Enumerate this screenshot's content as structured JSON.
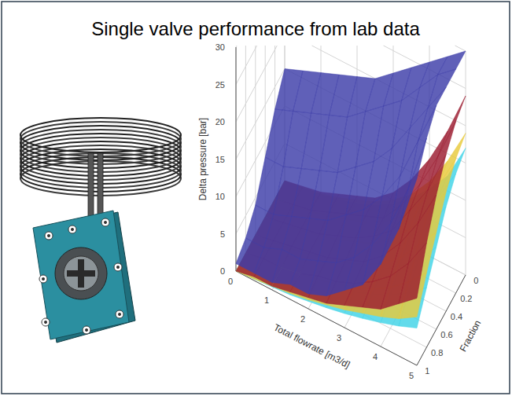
{
  "title": "Single valve performance from lab data",
  "chart_data": {
    "type": "surface",
    "xlabel": "Total flowrate [m3/d]",
    "ylabel": "Fraction",
    "zlabel": "Delta pressure [bar]",
    "x": [
      0,
      0.5,
      1,
      1.5,
      2,
      2.5,
      3,
      3.5,
      4,
      4.5,
      5
    ],
    "y": [
      0,
      0.2,
      0.4,
      0.6,
      0.8,
      1
    ],
    "xlim": [
      0,
      5
    ],
    "ylim": [
      0,
      1
    ],
    "zlim": [
      0,
      30
    ],
    "xticks": [
      0,
      1,
      2,
      3,
      4,
      5
    ],
    "yticks": [
      0,
      0.2,
      0.4,
      0.6,
      0.8,
      1
    ],
    "zticks": [
      0,
      5,
      10,
      15,
      20,
      25,
      30
    ],
    "grid": true,
    "series": [
      {
        "color": "#3d3da8",
        "values": [
          [
            15,
            16,
            17,
            18,
            19,
            20,
            22,
            24,
            26,
            28,
            30
          ],
          [
            12,
            13,
            14,
            15,
            16,
            18,
            20,
            22,
            25,
            28,
            30
          ],
          [
            8,
            8,
            9,
            10,
            11,
            13,
            15,
            18,
            22,
            26,
            30
          ],
          [
            4,
            4,
            5,
            6,
            7,
            9,
            11,
            14,
            18,
            24,
            30
          ],
          [
            2,
            2,
            3,
            3,
            4,
            5,
            7,
            10,
            14,
            20,
            28
          ],
          [
            1,
            1,
            1,
            2,
            2,
            3,
            5,
            7,
            11,
            17,
            25
          ]
        ]
      },
      {
        "color": "#9b1b30",
        "values": [
          [
            0,
            0.5,
            1,
            2,
            3,
            4,
            6,
            9,
            13,
            18,
            24
          ],
          [
            0,
            0.5,
            1,
            2,
            3,
            4,
            5,
            8,
            12,
            17,
            23
          ],
          [
            0,
            0.5,
            1,
            1.5,
            2.5,
            3.5,
            5,
            7,
            11,
            15,
            21
          ],
          [
            0,
            0.5,
            1,
            1.5,
            2,
            3,
            4,
            6,
            9,
            13,
            18
          ],
          [
            0,
            0.5,
            0.5,
            1,
            2,
            2.5,
            3.5,
            5,
            7,
            10,
            14
          ],
          [
            0,
            0.5,
            0.5,
            1,
            1.5,
            2,
            3,
            4,
            5,
            7,
            9
          ]
        ]
      },
      {
        "color": "#e8c93a",
        "values": [
          [
            0,
            0.4,
            0.8,
            1.5,
            2.5,
            3.5,
            5,
            7,
            10,
            14,
            19
          ],
          [
            0,
            0.4,
            0.8,
            1.5,
            2.3,
            3.2,
            4.5,
            6.5,
            9.5,
            13,
            18
          ],
          [
            0,
            0.3,
            0.7,
            1.3,
            2,
            3,
            4,
            6,
            8.5,
            12,
            16
          ],
          [
            0,
            0.3,
            0.6,
            1.2,
            1.8,
            2.6,
            3.6,
            5,
            7,
            10,
            13
          ],
          [
            0,
            0.3,
            0.5,
            1,
            1.5,
            2.2,
            3,
            4,
            5.5,
            7.5,
            10
          ],
          [
            0,
            0.2,
            0.5,
            0.8,
            1.2,
            1.8,
            2.4,
            3.2,
            4,
            5,
            6.5
          ]
        ]
      },
      {
        "color": "#3fd3e6",
        "values": [
          [
            0,
            0.3,
            0.7,
            1.2,
            2,
            3,
            4.5,
            6.5,
            9,
            12,
            17
          ],
          [
            0,
            0.3,
            0.6,
            1.1,
            1.8,
            2.8,
            4,
            6,
            8.5,
            11.5,
            16
          ],
          [
            0,
            0.3,
            0.6,
            1,
            1.6,
            2.5,
            3.5,
            5,
            7.5,
            10,
            14
          ],
          [
            0,
            0.2,
            0.5,
            0.9,
            1.4,
            2.1,
            3,
            4.2,
            6,
            8,
            11
          ],
          [
            0,
            0.2,
            0.4,
            0.8,
            1.2,
            1.7,
            2.4,
            3.3,
            4.5,
            6,
            8
          ],
          [
            0,
            0.2,
            0.4,
            0.6,
            1,
            1.4,
            1.9,
            2.5,
            3.2,
            4,
            5
          ]
        ]
      }
    ]
  }
}
